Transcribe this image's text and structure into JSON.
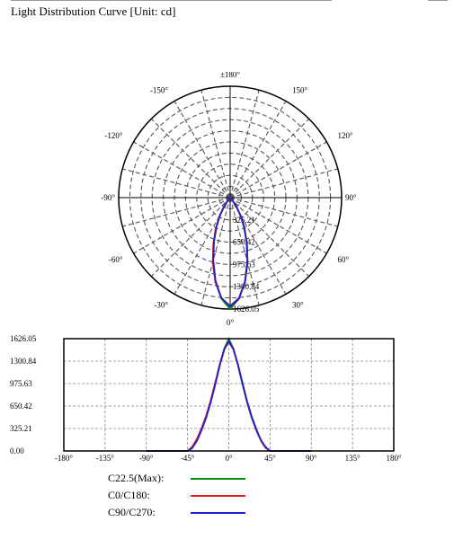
{
  "title": "Light Distribution Curve [Unit: cd]",
  "chart_data": [
    {
      "type": "polar",
      "angle_labels": [
        {
          "angle": 180,
          "label": "±180°"
        },
        {
          "angle": 150,
          "label": "150°"
        },
        {
          "angle": -150,
          "label": "-150°"
        },
        {
          "angle": 120,
          "label": "120°"
        },
        {
          "angle": -120,
          "label": "-120°"
        },
        {
          "angle": 90,
          "label": "90°"
        },
        {
          "angle": -90,
          "label": "-90°"
        },
        {
          "angle": 60,
          "label": "60°"
        },
        {
          "angle": -60,
          "label": "-60°"
        },
        {
          "angle": 30,
          "label": "30°"
        },
        {
          "angle": -30,
          "label": "-30°"
        },
        {
          "angle": 0,
          "label": "0°"
        }
      ],
      "radial_ticks": [
        325.21,
        650.42,
        975.63,
        1300.84,
        1626.05
      ],
      "radial_tick_labels": [
        "325.21",
        "650.42",
        "975.63",
        "1300.84",
        "1626.05"
      ],
      "rmax": 1626.05,
      "grid": true
    },
    {
      "type": "line",
      "x_ticks": [
        -180,
        -135,
        -90,
        -45,
        0,
        45,
        90,
        135,
        180
      ],
      "x_tick_labels": [
        "-180°",
        "-135°",
        "-90°",
        "-45°",
        "0°",
        "45°",
        "90°",
        "135°",
        "180°"
      ],
      "y_ticks": [
        0,
        325.21,
        650.42,
        975.63,
        1300.84,
        1626.05
      ],
      "y_tick_labels": [
        "0.00",
        "325.21",
        "650.42",
        "975.63",
        "1300.84",
        "1626.05"
      ],
      "xlim": [
        -180,
        180
      ],
      "ylim": [
        0,
        1626.05
      ],
      "grid": true
    }
  ],
  "series": [
    {
      "name": "C22.5(Max):",
      "color": "#0a8a0a",
      "points": [
        [
          -90,
          0
        ],
        [
          -45,
          0
        ],
        [
          -40,
          50
        ],
        [
          -35,
          150
        ],
        [
          -30,
          300
        ],
        [
          -25,
          480
        ],
        [
          -20,
          700
        ],
        [
          -15,
          960
        ],
        [
          -10,
          1240
        ],
        [
          -5,
          1480
        ],
        [
          0,
          1626.05
        ],
        [
          5,
          1480
        ],
        [
          10,
          1240
        ],
        [
          15,
          960
        ],
        [
          20,
          700
        ],
        [
          25,
          480
        ],
        [
          30,
          300
        ],
        [
          35,
          150
        ],
        [
          40,
          50
        ],
        [
          45,
          0
        ],
        [
          90,
          0
        ]
      ]
    },
    {
      "name": "C0/C180:",
      "color": "#e02020",
      "points": [
        [
          -90,
          0
        ],
        [
          -45,
          0
        ],
        [
          -40,
          60
        ],
        [
          -35,
          170
        ],
        [
          -30,
          320
        ],
        [
          -25,
          500
        ],
        [
          -20,
          720
        ],
        [
          -15,
          980
        ],
        [
          -10,
          1250
        ],
        [
          -5,
          1470
        ],
        [
          0,
          1580
        ],
        [
          5,
          1470
        ],
        [
          10,
          1250
        ],
        [
          15,
          980
        ],
        [
          20,
          720
        ],
        [
          25,
          500
        ],
        [
          30,
          320
        ],
        [
          35,
          150
        ],
        [
          40,
          45
        ],
        [
          45,
          0
        ],
        [
          90,
          0
        ]
      ]
    },
    {
      "name": "C90/C270:",
      "color": "#2020d0",
      "points": [
        [
          -90,
          0
        ],
        [
          -45,
          0
        ],
        [
          -40,
          40
        ],
        [
          -35,
          140
        ],
        [
          -30,
          290
        ],
        [
          -25,
          470
        ],
        [
          -20,
          690
        ],
        [
          -15,
          950
        ],
        [
          -10,
          1230
        ],
        [
          -5,
          1470
        ],
        [
          0,
          1590
        ],
        [
          5,
          1480
        ],
        [
          10,
          1250
        ],
        [
          15,
          980
        ],
        [
          20,
          710
        ],
        [
          25,
          490
        ],
        [
          30,
          310
        ],
        [
          35,
          160
        ],
        [
          40,
          60
        ],
        [
          45,
          0
        ],
        [
          90,
          0
        ]
      ]
    }
  ]
}
